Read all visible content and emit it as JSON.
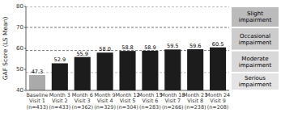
{
  "chart_data": {
    "type": "bar",
    "ylabel": "GAF Score (LS Mean)",
    "categories": [
      "Baseline\nVisit 1\n(n=433)",
      "Month 3\nVisit 2\n(n=433)",
      "Month 6\nVisit 3\n(n=362)",
      "Month 9\nVisit 4\n(n=329)",
      "Month 12\nVisit 5\n(n=304)",
      "Month 15\nVisit 6\n(n=283)",
      "Month 18\nVisit 7\n(n=266)",
      "Month 21\nVisit 8\n(n=238)",
      "Month 24\nVisit 9\n(n=208)"
    ],
    "values": [
      47.3,
      52.9,
      55.9,
      58.0,
      58.8,
      58.9,
      59.5,
      59.6,
      60.5
    ],
    "value_labels": [
      "47.3",
      "52.9",
      "55.9",
      "58.0",
      "58.8",
      "58.9",
      "59.5",
      "59.6",
      "60.5"
    ],
    "data_labels": true,
    "colors": [
      "#aaaaaa",
      "#1c1c1c",
      "#1c1c1c",
      "#1c1c1c",
      "#1c1c1c",
      "#1c1c1c",
      "#1c1c1c",
      "#1c1c1c",
      "#1c1c1c"
    ],
    "ylim": [
      40,
      80
    ],
    "yticks": [
      40,
      50,
      60,
      70,
      80
    ],
    "grid": false,
    "reference_lines": [
      {
        "value": 70,
        "color": "#555555"
      },
      {
        "value": 80,
        "color": "#555555"
      },
      {
        "value": 59.0,
        "color": "#555555"
      },
      {
        "value": 48.5,
        "color": "#aaaaaa"
      }
    ],
    "zones": [
      {
        "label": "Slight\nimpairment",
        "color": "#bbbbbb",
        "from": 70.0,
        "to": 80.0
      },
      {
        "label": "Occasional\nimpairment",
        "color": "#cccccc",
        "from": 59.0,
        "to": 70.0
      },
      {
        "label": "Moderate\nimpairment",
        "color": "#d8d8d8",
        "from": 48.5,
        "to": 59.0
      },
      {
        "label": "Serious\nimpairment",
        "color": "#e4e4e4",
        "from": 40.0,
        "to": 48.5
      }
    ]
  }
}
